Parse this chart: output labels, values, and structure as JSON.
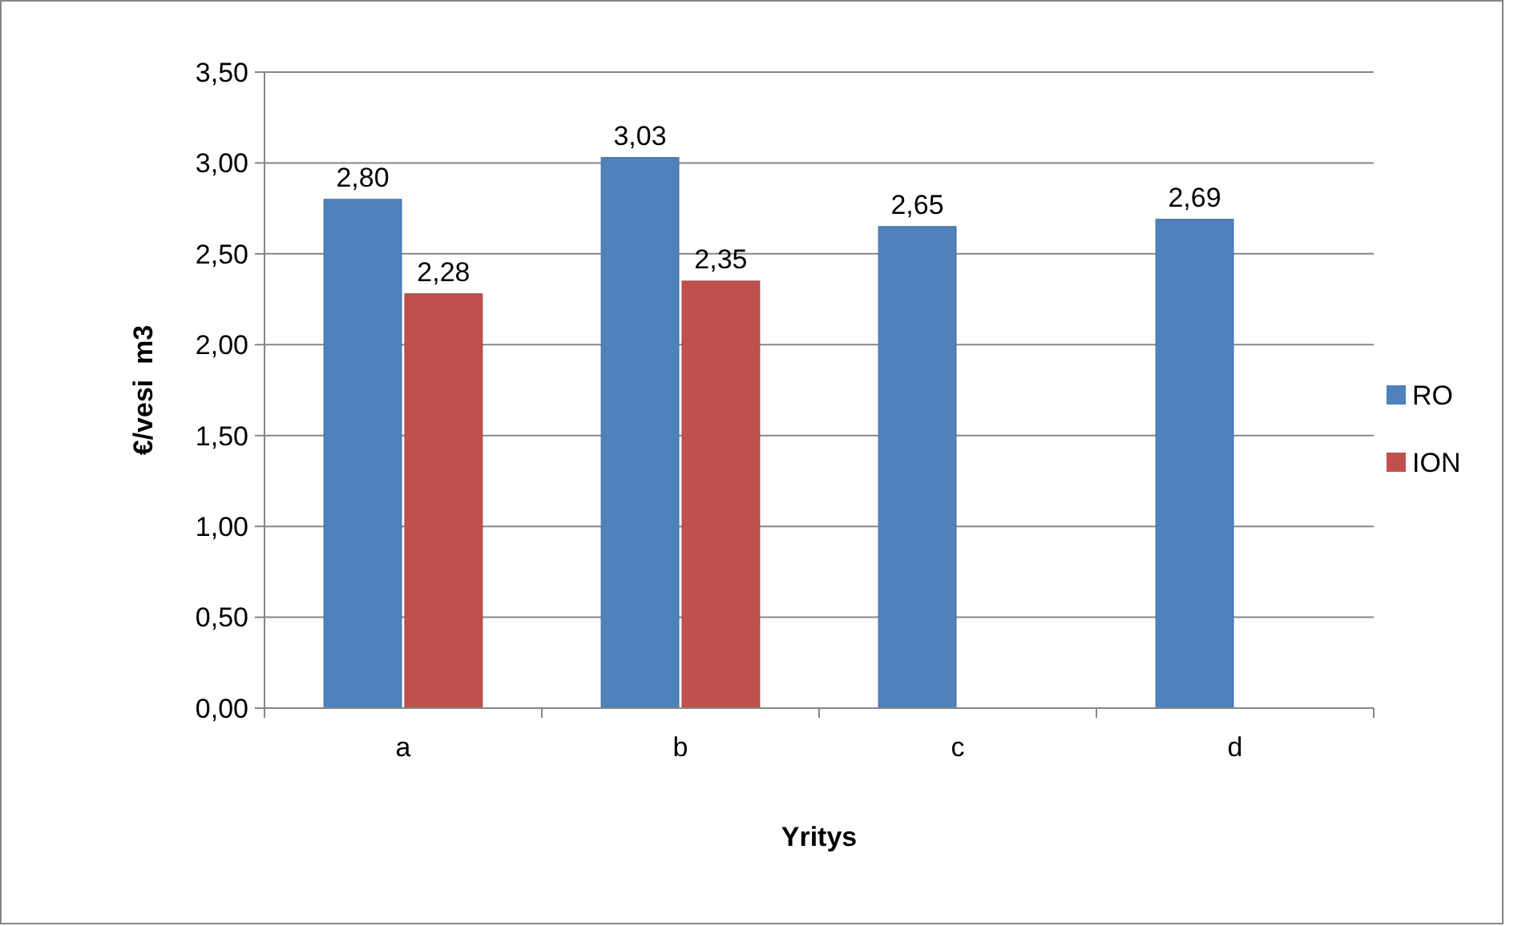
{
  "chart_data": {
    "type": "bar",
    "xlabel": "Yritys",
    "ylabel": "€/vesi  m3",
    "categories": [
      "a",
      "b",
      "c",
      "d"
    ],
    "series": [
      {
        "name": "RO",
        "color": "#4f81bd",
        "values": [
          2.8,
          3.03,
          2.65,
          2.69
        ],
        "value_labels": [
          "2,80",
          "3,03",
          "2,65",
          "2,69"
        ]
      },
      {
        "name": "ION",
        "color": "#c0504d",
        "values": [
          2.28,
          2.35,
          null,
          null
        ],
        "value_labels": [
          "2,28",
          "2,35",
          null,
          null
        ]
      }
    ],
    "ylim": [
      0,
      3.5
    ],
    "yticks": [
      {
        "value": 0,
        "label": "0,00"
      },
      {
        "value": 0.5,
        "label": "0,50"
      },
      {
        "value": 1,
        "label": "1,00"
      },
      {
        "value": 1.5,
        "label": "1,50"
      },
      {
        "value": 2,
        "label": "2,00"
      },
      {
        "value": 2.5,
        "label": "2,50"
      },
      {
        "value": 3,
        "label": "3,00"
      },
      {
        "value": 3.5,
        "label": "3,50"
      }
    ],
    "grid": "y",
    "legend": "right"
  }
}
